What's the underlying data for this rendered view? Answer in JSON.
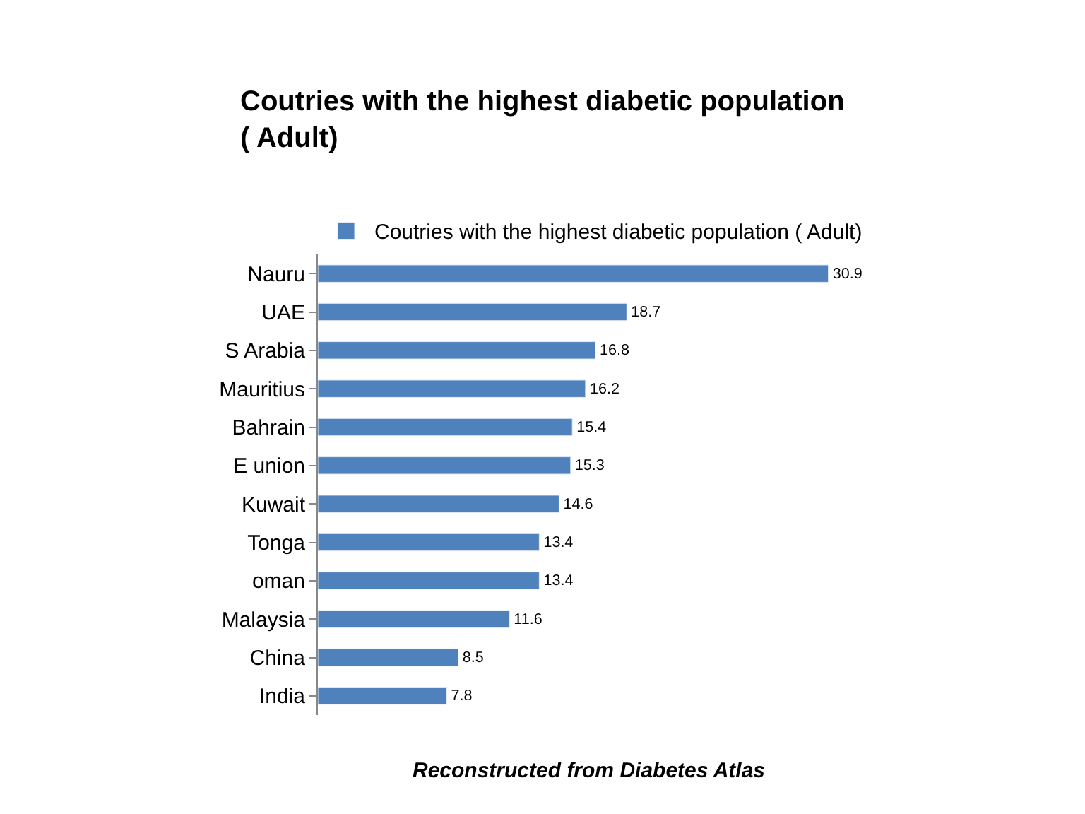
{
  "chart_data": {
    "type": "bar",
    "orientation": "horizontal",
    "title": "Coutries with the highest diabetic population ( Adult)",
    "categories": [
      "Nauru",
      "UAE",
      "S Arabia",
      "Mauritius",
      "Bahrain",
      "E union",
      "Kuwait",
      "Tonga",
      "oman",
      "Malaysia",
      "China",
      "India"
    ],
    "series": [
      {
        "name": "Coutries with the highest diabetic population ( Adult)",
        "color": "#4f81bd",
        "values": [
          30.9,
          18.7,
          16.8,
          16.2,
          15.4,
          15.3,
          14.6,
          13.4,
          13.4,
          11.6,
          8.5,
          7.8
        ]
      }
    ],
    "data_labels": true,
    "legend": "top",
    "annotations": [
      "Reconstructed from Diabetes Atlas"
    ]
  }
}
